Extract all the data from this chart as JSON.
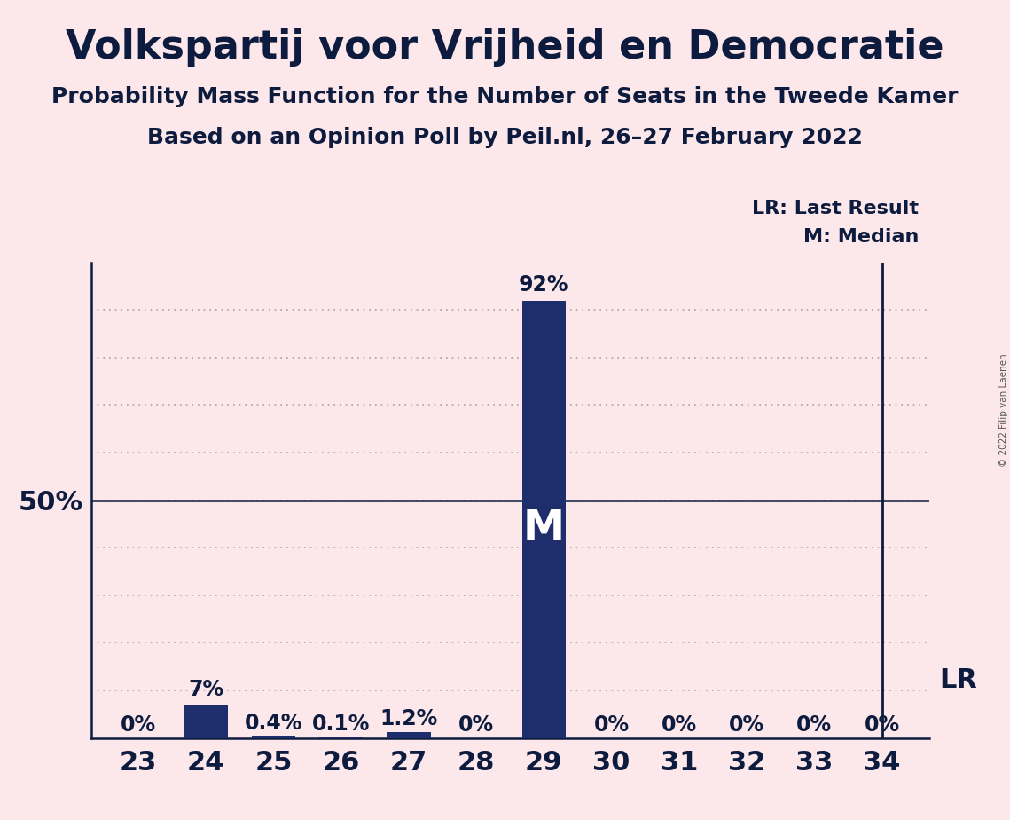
{
  "title": "Volkspartij voor Vrijheid en Democratie",
  "subtitle": "Probability Mass Function for the Number of Seats in the Tweede Kamer",
  "subsubtitle": "Based on an Opinion Poll by Peil.nl, 26–27 February 2022",
  "copyright": "© 2022 Filip van Laenen",
  "categories": [
    23,
    24,
    25,
    26,
    27,
    28,
    29,
    30,
    31,
    32,
    33,
    34
  ],
  "values": [
    0.0,
    7.0,
    0.4,
    0.1,
    1.2,
    0.0,
    92.0,
    0.0,
    0.0,
    0.0,
    0.0,
    0.0
  ],
  "labels": [
    "0%",
    "7%",
    "0.4%",
    "0.1%",
    "1.2%",
    "0%",
    "92%",
    "0%",
    "0%",
    "0%",
    "0%",
    "0%"
  ],
  "bar_color": "#1e2d6b",
  "background_color": "#fce8ea",
  "median_seat": 29,
  "median_label": "M",
  "lr_seat": 34,
  "lr_label": "LR",
  "legend_lr": "LR: Last Result",
  "legend_m": "M: Median",
  "ylim": [
    0,
    100
  ],
  "yticks": [
    10,
    20,
    30,
    40,
    50,
    60,
    70,
    80,
    90
  ],
  "ylabel_50": "50%",
  "title_fontsize": 32,
  "subtitle_fontsize": 18,
  "subsubtitle_fontsize": 18,
  "axis_label_fontsize": 22,
  "bar_label_fontsize": 17,
  "grid_color": "#1a1a1a",
  "grid_alpha": 0.35
}
